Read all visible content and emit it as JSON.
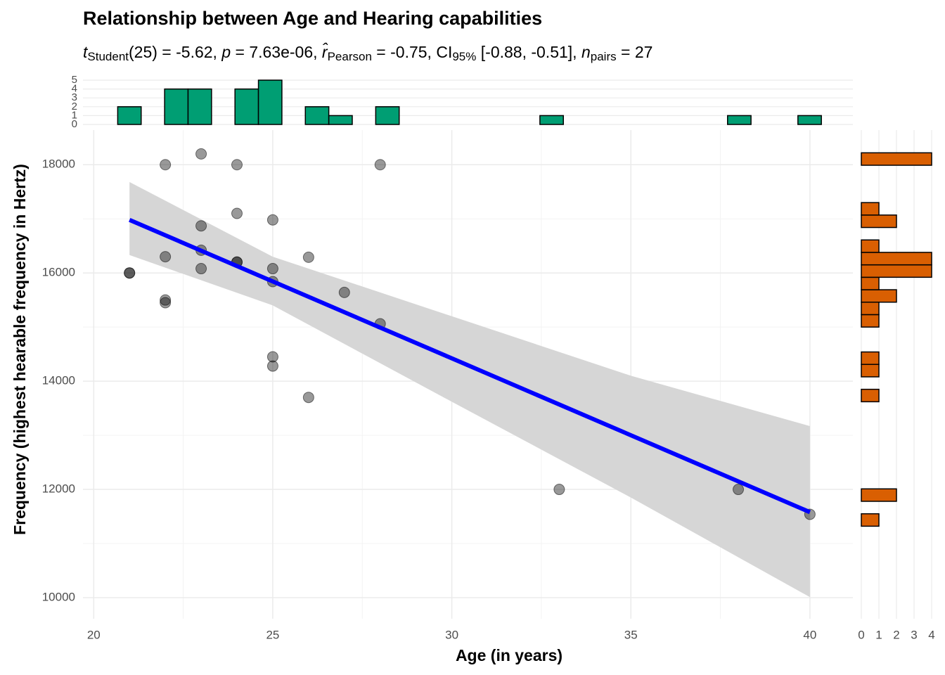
{
  "chart_data": {
    "type": "scatter",
    "title": "Relationship between Age and Hearing capabilities",
    "subtitle": [
      {
        "text": "t",
        "style": "italic"
      },
      {
        "text": "Student",
        "style": "sub"
      },
      {
        "text": "(25) = -5.62, ",
        "style": "normal"
      },
      {
        "text": "p",
        "style": "italic"
      },
      {
        "text": " = 7.63e-06, ",
        "style": "normal"
      },
      {
        "text": "r̂",
        "style": "italic"
      },
      {
        "text": "Pearson",
        "style": "sub"
      },
      {
        "text": " = -0.75, CI",
        "style": "normal"
      },
      {
        "text": "95%",
        "style": "sub"
      },
      {
        "text": " [-0.88, -0.51], ",
        "style": "normal"
      },
      {
        "text": "n",
        "style": "italic"
      },
      {
        "text": "pairs",
        "style": "sub"
      },
      {
        "text": " = 27",
        "style": "normal"
      }
    ],
    "xlabel": "Age (in years)",
    "ylabel": "Frequency (highest hearable frequency in Hertz)",
    "x": [
      21,
      21,
      22,
      22,
      22,
      22,
      23,
      23,
      23,
      23,
      24,
      24,
      24,
      24,
      25,
      25,
      25,
      25,
      25,
      26,
      26,
      27,
      28,
      28,
      33,
      38,
      40
    ],
    "y": [
      16000,
      16000,
      18000,
      16300,
      15500,
      15450,
      18200,
      16870,
      16420,
      16080,
      18000,
      17100,
      16200,
      16200,
      16980,
      16080,
      15840,
      14450,
      14280,
      16290,
      13700,
      15640,
      18000,
      15060,
      12000,
      12000,
      11540
    ],
    "point_color": "#000000",
    "xlim": [
      19.7,
      41.2
    ],
    "xticks": [
      20,
      25,
      30,
      35,
      40
    ],
    "x_minor_ticks": [
      22.5,
      27.5,
      32.5,
      37.5
    ],
    "ylim": [
      9610,
      18640
    ],
    "yticks": [
      10000,
      12000,
      14000,
      16000,
      18000
    ],
    "y_minor_ticks": [
      11000,
      13000,
      15000,
      17000
    ],
    "grid": true,
    "fit": {
      "x": [
        21,
        40
      ],
      "y": [
        16980,
        11580
      ],
      "color": "#0000ff"
    },
    "ci": {
      "x": [
        21,
        25,
        30,
        35,
        40
      ],
      "lower": [
        16330,
        15400,
        13620,
        11850,
        10010
      ],
      "upper": [
        17680,
        16300,
        15200,
        14100,
        13170
      ],
      "color": "#d6d6d6"
    },
    "top_histogram": {
      "bins": [
        20.67,
        21.325,
        21.98,
        22.635,
        23.29,
        23.945,
        24.6,
        25.255,
        25.91,
        26.565,
        27.22,
        27.875,
        28.53,
        29.185,
        29.84,
        30.495,
        31.15,
        31.805,
        32.46,
        33.115,
        33.77,
        34.425,
        35.08,
        35.735,
        36.39,
        37.045,
        37.7,
        38.355,
        39.01,
        39.665,
        40.32
      ],
      "counts": [
        2,
        0,
        4,
        4,
        0,
        4,
        5,
        0,
        2,
        1,
        0,
        2,
        0,
        0,
        0,
        0,
        0,
        0,
        1,
        0,
        0,
        0,
        0,
        0,
        0,
        0,
        1,
        0,
        0,
        1
      ],
      "ylim": [
        0,
        5
      ],
      "yticks": [
        0,
        1,
        2,
        3,
        4,
        5
      ],
      "color": "#009e73"
    },
    "right_histogram": {
      "bins": [
        11320,
        11550,
        11780,
        12010,
        12240,
        12470,
        12700,
        12930,
        13160,
        13390,
        13620,
        13850,
        14080,
        14310,
        14540,
        14770,
        15000,
        15230,
        15460,
        15690,
        15920,
        16150,
        16380,
        16610,
        16840,
        17070,
        17300,
        17530,
        17760,
        17990,
        18220
      ],
      "counts": [
        1,
        0,
        2,
        0,
        0,
        0,
        0,
        0,
        0,
        0,
        1,
        0,
        1,
        1,
        0,
        0,
        1,
        1,
        2,
        1,
        4,
        4,
        1,
        0,
        2,
        1,
        0,
        0,
        0,
        4
      ],
      "xlim": [
        0,
        4
      ],
      "xticks": [
        0,
        1,
        2,
        3,
        4
      ],
      "color": "#d95f02"
    }
  }
}
